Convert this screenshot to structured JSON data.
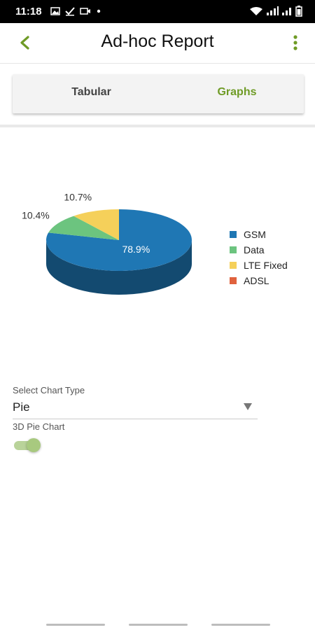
{
  "status_bar": {
    "time": "11:18"
  },
  "header": {
    "title": "Ad-hoc Report"
  },
  "tabs": [
    {
      "label": "Tabular",
      "active": false
    },
    {
      "label": "Graphs",
      "active": true
    }
  ],
  "chart_data": {
    "type": "pie",
    "three_d": true,
    "slices": [
      {
        "label": "GSM",
        "value": 78.9,
        "display": "78.9%",
        "color": "#1f77b4"
      },
      {
        "label": "Data",
        "value": 10.4,
        "display": "10.4%",
        "color": "#6cc47f"
      },
      {
        "label": "LTE Fixed",
        "value": 10.7,
        "display": "10.7%",
        "color": "#f5d05a"
      },
      {
        "label": "ADSL",
        "value": 0,
        "display": "",
        "color": "#e0623d"
      }
    ],
    "legend_position": "right"
  },
  "controls": {
    "chart_type_label": "Select Chart Type",
    "chart_type_value": "Pie",
    "pie3d_label": "3D Pie Chart",
    "pie3d_enabled": true
  },
  "colors": {
    "accent": "#6f9b26",
    "tab_inactive": "#444444"
  }
}
